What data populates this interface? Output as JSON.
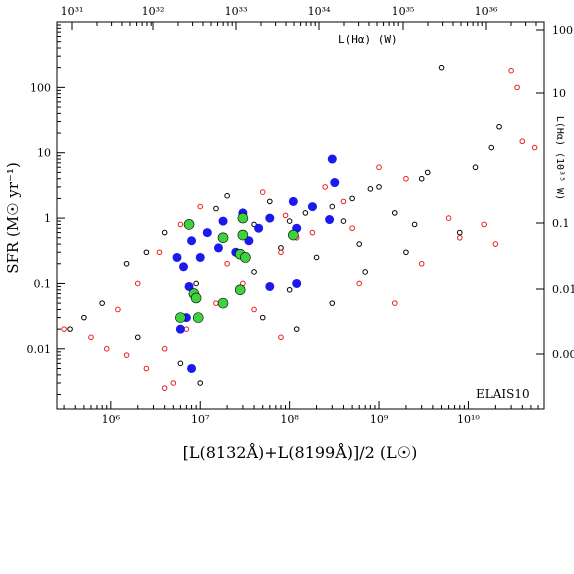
{
  "chart_data": {
    "type": "scatter",
    "xlabel": "[L(8132Å)+L(8199Å)]/2 (L☉)",
    "ylabel": "SFR (M☉ yr⁻¹)",
    "top_axis_label": "L(Hα) (W)",
    "right_axis_label": "L(Hα) (10³⁵ W)",
    "annotation": "ELAIS10",
    "x_scale": "log",
    "y_scale": "log",
    "xlim": [
      250000,
      70000000000
    ],
    "ylim": [
      0.0012,
      1000
    ],
    "x_ticks": [
      {
        "value": 1000000,
        "label": "10⁶"
      },
      {
        "value": 10000000,
        "label": "10⁷"
      },
      {
        "value": 100000000,
        "label": "10⁸"
      },
      {
        "value": 1000000000,
        "label": "10⁹"
      },
      {
        "value": 10000000000,
        "label": "10¹⁰"
      }
    ],
    "y_ticks": [
      {
        "value": 0.01,
        "label": "0.01"
      },
      {
        "value": 0.1,
        "label": "0.1"
      },
      {
        "value": 1,
        "label": "1"
      },
      {
        "value": 10,
        "label": "10"
      },
      {
        "value": 100,
        "label": "100"
      }
    ],
    "top_ticks": [
      {
        "label": "10³¹"
      },
      {
        "label": "10³²"
      },
      {
        "label": "10³³"
      },
      {
        "label": "10³⁴"
      },
      {
        "label": "10³⁵"
      },
      {
        "label": "10³⁶"
      }
    ],
    "right_ticks": [
      {
        "label": "100"
      },
      {
        "label": "10"
      },
      {
        "label": "0.1"
      },
      {
        "label": "0.01"
      },
      {
        "label": "0.00"
      }
    ],
    "colors": {
      "black": "#000000",
      "red": "#ee1c1c",
      "blue": "#1a1aee",
      "green": "#3fd23f"
    },
    "series": [
      {
        "marker": "open-circle",
        "color": "black",
        "points": [
          [
            5000000000.0,
            200
          ],
          [
            22000000000.0,
            25
          ],
          [
            18000000000.0,
            12
          ],
          [
            12000000000.0,
            6
          ],
          [
            3500000000.0,
            5
          ],
          [
            3000000000.0,
            4
          ],
          [
            1000000000.0,
            3
          ],
          [
            800000000.0,
            2.8
          ],
          [
            500000000.0,
            2
          ],
          [
            300000000.0,
            1.5
          ],
          [
            150000000.0,
            1.2
          ],
          [
            100000000.0,
            0.9
          ],
          [
            60000000.0,
            1.8
          ],
          [
            40000000.0,
            0.8
          ],
          [
            20000000.0,
            2.2
          ],
          [
            15000000.0,
            1.4
          ],
          [
            80000000.0,
            0.35
          ],
          [
            600000000.0,
            0.4
          ],
          [
            2000000000.0,
            0.3
          ],
          [
            8000000000.0,
            0.6
          ],
          [
            300000000.0,
            0.05
          ],
          [
            120000000.0,
            0.02
          ],
          [
            50000000.0,
            0.03
          ],
          [
            4000000.0,
            0.6
          ],
          [
            2500000.0,
            0.3
          ],
          [
            1500000.0,
            0.2
          ],
          [
            800000.0,
            0.05
          ],
          [
            500000.0,
            0.03
          ],
          [
            350000.0,
            0.02
          ],
          [
            10000000.0,
            0.003
          ],
          [
            6000000.0,
            0.006
          ],
          [
            2000000.0,
            0.015
          ],
          [
            9000000.0,
            0.1
          ],
          [
            40000000.0,
            0.15
          ],
          [
            1500000000.0,
            1.2
          ],
          [
            2500000000.0,
            0.8
          ],
          [
            700000000.0,
            0.15
          ],
          [
            400000000.0,
            0.9
          ],
          [
            200000000.0,
            0.25
          ],
          [
            100000000.0,
            0.08
          ]
        ]
      },
      {
        "marker": "open-circle",
        "color": "red",
        "points": [
          [
            55000000000.0,
            12
          ],
          [
            30000000000.0,
            180
          ],
          [
            35000000000.0,
            100
          ],
          [
            40000000000.0,
            15
          ],
          [
            20000000000.0,
            0.4
          ],
          [
            15000000000.0,
            0.8
          ],
          [
            6000000000.0,
            1
          ],
          [
            2000000000.0,
            4
          ],
          [
            1000000000.0,
            6
          ],
          [
            500000000.0,
            0.7
          ],
          [
            250000000.0,
            3
          ],
          [
            120000000.0,
            0.5
          ],
          [
            80000000.0,
            0.3
          ],
          [
            30000000.0,
            0.1
          ],
          [
            15000000.0,
            0.05
          ],
          [
            7000000.0,
            0.02
          ],
          [
            4000000.0,
            0.01
          ],
          [
            2500000.0,
            0.005
          ],
          [
            1500000.0,
            0.008
          ],
          [
            900000.0,
            0.01
          ],
          [
            600000.0,
            0.015
          ],
          [
            300000.0,
            0.02
          ],
          [
            5000000.0,
            0.003
          ],
          [
            4000000.0,
            0.0025
          ],
          [
            1200000.0,
            0.04
          ],
          [
            2000000.0,
            0.1
          ],
          [
            3500000.0,
            0.3
          ],
          [
            6000000.0,
            0.8
          ],
          [
            10000000.0,
            1.5
          ],
          [
            20000000.0,
            0.2
          ],
          [
            40000000.0,
            0.04
          ],
          [
            80000000.0,
            0.015
          ],
          [
            600000000.0,
            0.1
          ],
          [
            1500000000.0,
            0.05
          ],
          [
            3000000000.0,
            0.2
          ],
          [
            8000000000.0,
            0.5
          ],
          [
            400000000.0,
            1.8
          ],
          [
            180000000.0,
            0.6
          ],
          [
            90000000.0,
            1.1
          ],
          [
            50000000.0,
            2.5
          ]
        ]
      },
      {
        "marker": "filled-circle",
        "color": "blue",
        "points": [
          [
            300000000.0,
            8
          ],
          [
            320000000.0,
            3.5
          ],
          [
            180000000.0,
            1.5
          ],
          [
            110000000.0,
            1.8
          ],
          [
            280000000.0,
            0.95
          ],
          [
            120000000.0,
            0.7
          ],
          [
            60000000.0,
            1
          ],
          [
            30000000.0,
            1.2
          ],
          [
            35000000.0,
            0.45
          ],
          [
            25000000.0,
            0.3
          ],
          [
            16000000.0,
            0.35
          ],
          [
            10000000.0,
            0.25
          ],
          [
            6500000.0,
            0.18
          ],
          [
            5500000.0,
            0.25
          ],
          [
            8000000.0,
            0.45
          ],
          [
            12000000.0,
            0.6
          ],
          [
            18000000.0,
            0.9
          ],
          [
            45000000.0,
            0.7
          ],
          [
            7000000.0,
            0.03
          ],
          [
            6000000.0,
            0.02
          ],
          [
            8000000.0,
            0.005
          ],
          [
            120000000.0,
            0.1
          ],
          [
            60000000.0,
            0.09
          ],
          [
            7500000.0,
            0.09
          ]
        ]
      },
      {
        "marker": "filled-circle",
        "color": "green",
        "points": [
          [
            110000000.0,
            0.55
          ],
          [
            30000000.0,
            1
          ],
          [
            7500000.0,
            0.8
          ],
          [
            28000000.0,
            0.28
          ],
          [
            32000000.0,
            0.25
          ],
          [
            18000000.0,
            0.5
          ],
          [
            8500000.0,
            0.07
          ],
          [
            9000000.0,
            0.06
          ],
          [
            18000000.0,
            0.05
          ],
          [
            28000000.0,
            0.08
          ],
          [
            6000000.0,
            0.03
          ],
          [
            9500000.0,
            0.03
          ],
          [
            30000000.0,
            0.55
          ]
        ]
      }
    ]
  }
}
